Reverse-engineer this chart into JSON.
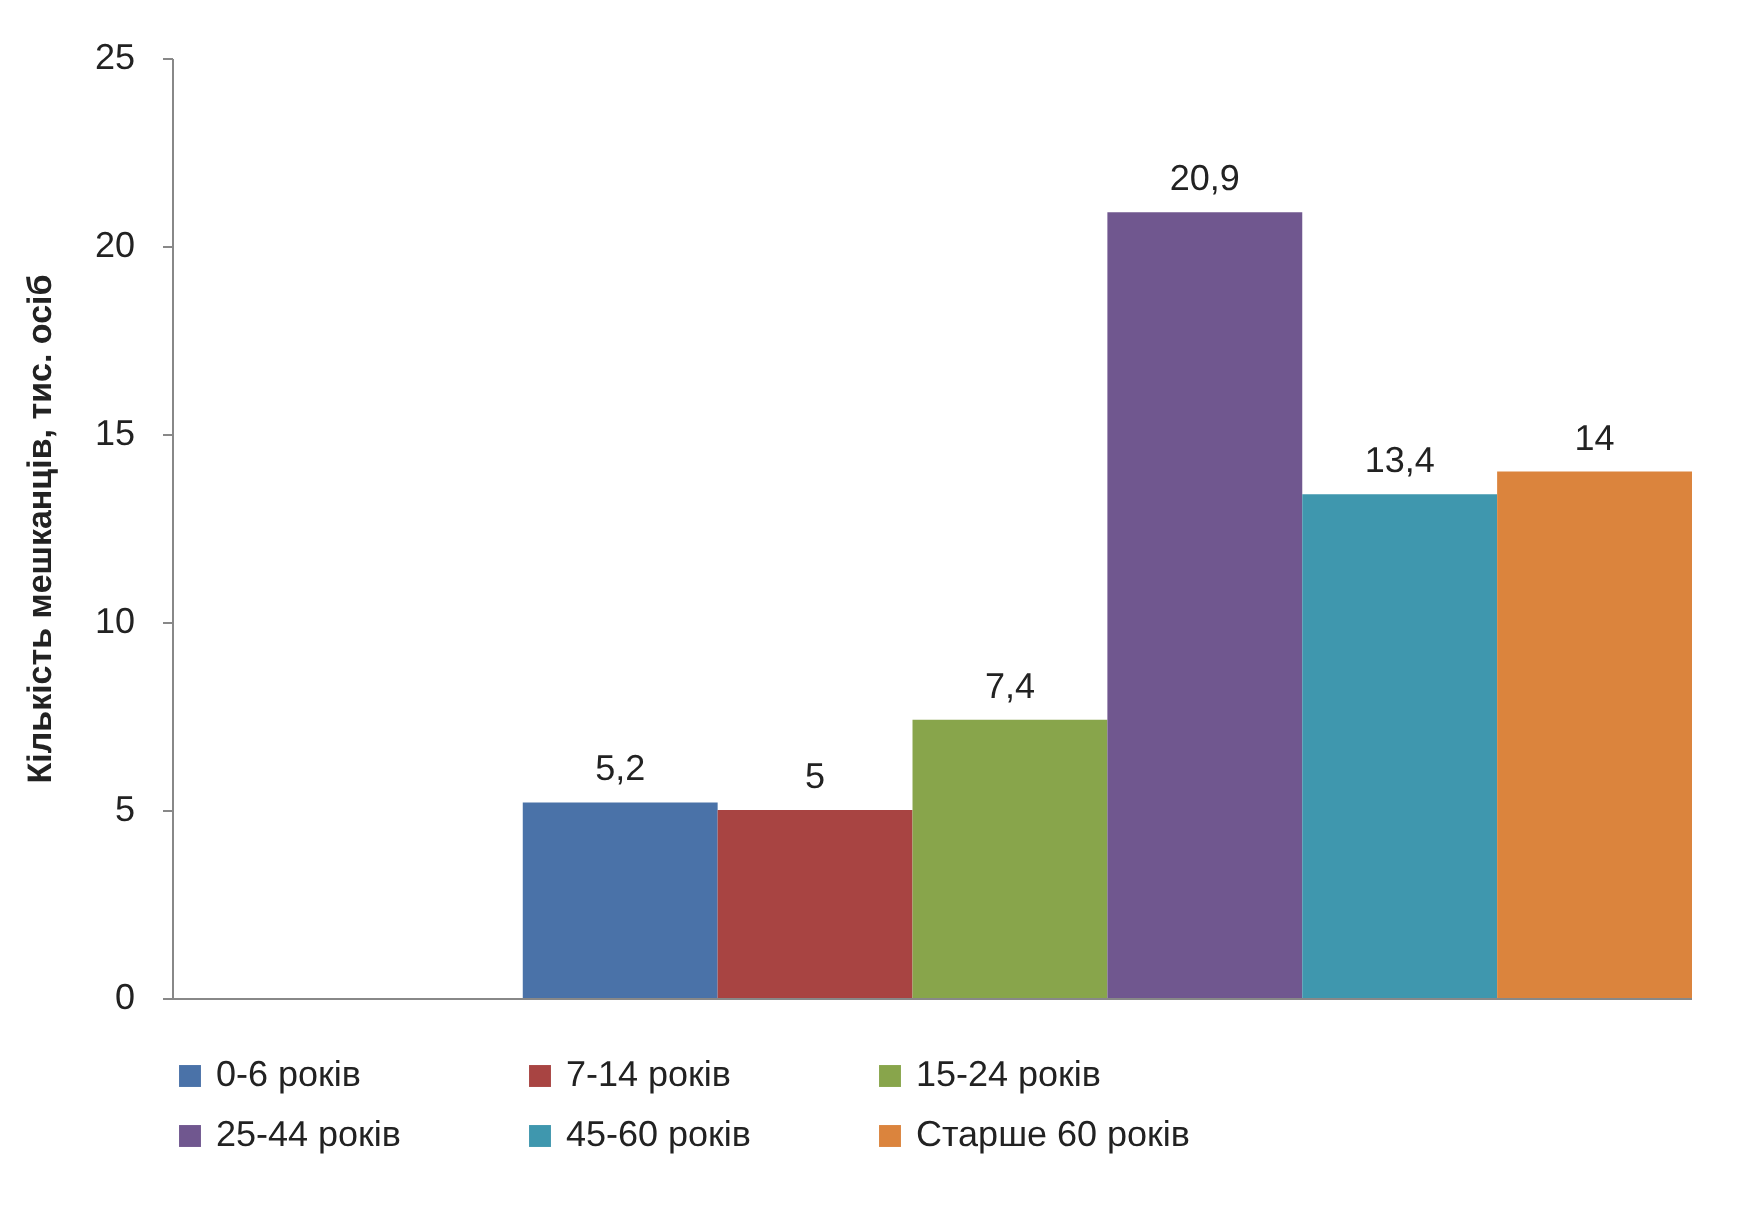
{
  "chart_data": {
    "type": "bar",
    "ylabel": "Кількість мешканців, тис. осіб",
    "categories": [
      null
    ],
    "ylim": [
      0,
      25
    ],
    "yticks": [
      0,
      5,
      10,
      15,
      20,
      25
    ],
    "legend": "bottom",
    "series": [
      {
        "name": "0-6 років",
        "color": "#4a72a8",
        "values": [
          5.2
        ],
        "value_labels": [
          "5,2"
        ]
      },
      {
        "name": "7-14 років",
        "color": "#a84442",
        "values": [
          5
        ],
        "value_labels": [
          "5"
        ]
      },
      {
        "name": "15-24 років",
        "color": "#88a54b",
        "values": [
          7.4
        ],
        "value_labels": [
          "7,4"
        ]
      },
      {
        "name": "25-44 років",
        "color": "#70578f",
        "values": [
          20.9
        ],
        "value_labels": [
          "20,9"
        ]
      },
      {
        "name": "45-60 років",
        "color": "#3f97ae",
        "values": [
          13.4
        ],
        "value_labels": [
          "13,4"
        ]
      },
      {
        "name": "Старше 60 років",
        "color": "#db843d",
        "values": [
          14
        ],
        "value_labels": [
          "14"
        ]
      }
    ]
  }
}
